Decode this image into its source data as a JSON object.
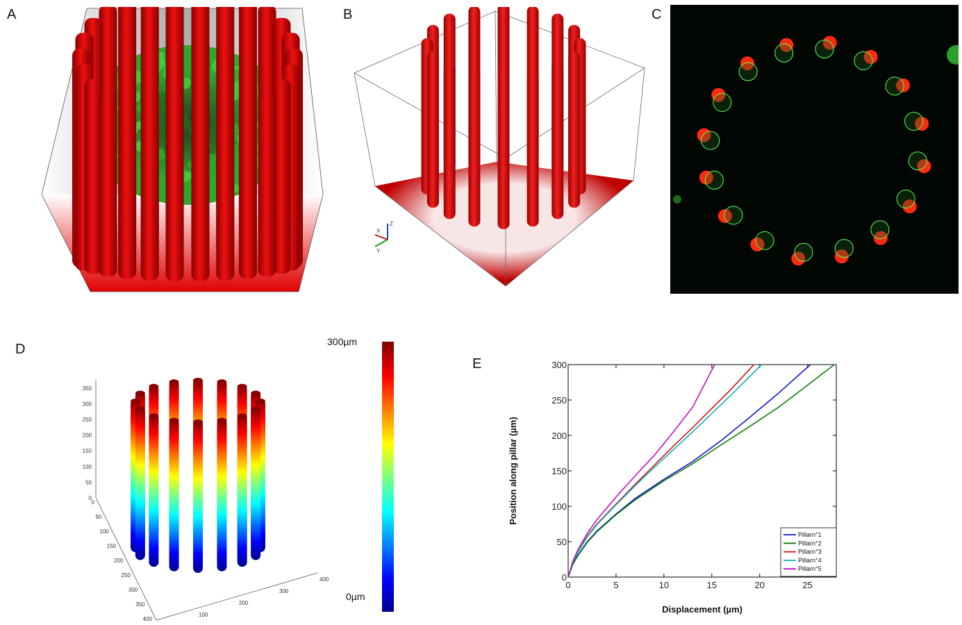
{
  "panels": {
    "a": "A",
    "b": "B",
    "c": "C",
    "d": "D",
    "e": "E"
  },
  "colorbar": {
    "top_label": "300µm",
    "bottom_label": "0µm"
  },
  "panel_d_axes": {
    "z_ticks": [
      "0",
      "50",
      "100",
      "150",
      "200",
      "250",
      "300",
      "350"
    ],
    "y_ticks": [
      "0",
      "50",
      "100",
      "150",
      "200",
      "250",
      "300",
      "350",
      "400"
    ],
    "x_ticks": [
      "0",
      "100",
      "200",
      "300",
      "400"
    ]
  },
  "panel_b_axes": {
    "labels": [
      "Z",
      "Y",
      "X"
    ]
  },
  "chart_data": {
    "type": "line",
    "title": "",
    "xlabel": "Displacement  (µm)",
    "ylabel": "Position along pillar (µm)",
    "xlim": [
      0,
      28
    ],
    "ylim": [
      0,
      300
    ],
    "xticks": [
      "0",
      "5",
      "10",
      "15",
      "20",
      "25"
    ],
    "yticks": [
      "0",
      "50",
      "100",
      "150",
      "200",
      "250",
      "300"
    ],
    "legend_position": "bottom-right",
    "series": [
      {
        "name": "Pillarn°1",
        "color": "#1010d0",
        "x": [
          0,
          0.5,
          1,
          2,
          3,
          5,
          7,
          10,
          13,
          16,
          19,
          22,
          25.3
        ],
        "y": [
          0,
          19,
          31,
          50,
          65,
          89,
          111,
          138,
          163,
          193,
          226,
          260,
          300
        ]
      },
      {
        "name": "Pillarn°2",
        "color": "#0a7d0a",
        "x": [
          0,
          0.5,
          1,
          2,
          3,
          5,
          7,
          10,
          13,
          16,
          19,
          22,
          25,
          27.8
        ],
        "y": [
          0,
          18,
          30,
          49,
          64,
          88,
          109,
          136,
          160,
          187,
          213,
          240,
          271,
          300
        ]
      },
      {
        "name": "Pillarn°3",
        "color": "#d01010",
        "x": [
          0,
          0.5,
          1,
          2,
          3,
          5,
          7,
          9,
          11,
          13,
          15,
          17,
          19.4
        ],
        "y": [
          0,
          22,
          36,
          58,
          75,
          103,
          131,
          158,
          185,
          211,
          238,
          265,
          300
        ]
      },
      {
        "name": "Pillarn°4",
        "color": "#10b0b8",
        "x": [
          0,
          0.5,
          1,
          2,
          3,
          5,
          7,
          9,
          11,
          13,
          15,
          17,
          20.2
        ],
        "y": [
          0,
          21,
          35,
          57,
          74,
          102,
          129,
          155,
          180,
          205,
          231,
          257,
          300
        ]
      },
      {
        "name": "Pillarn°5",
        "color": "#c010c0",
        "x": [
          0,
          0.5,
          1,
          2,
          3,
          5,
          7,
          9,
          11,
          13,
          15.3
        ],
        "y": [
          0,
          23,
          38,
          62,
          81,
          113,
          143,
          172,
          205,
          240,
          300
        ]
      }
    ]
  }
}
